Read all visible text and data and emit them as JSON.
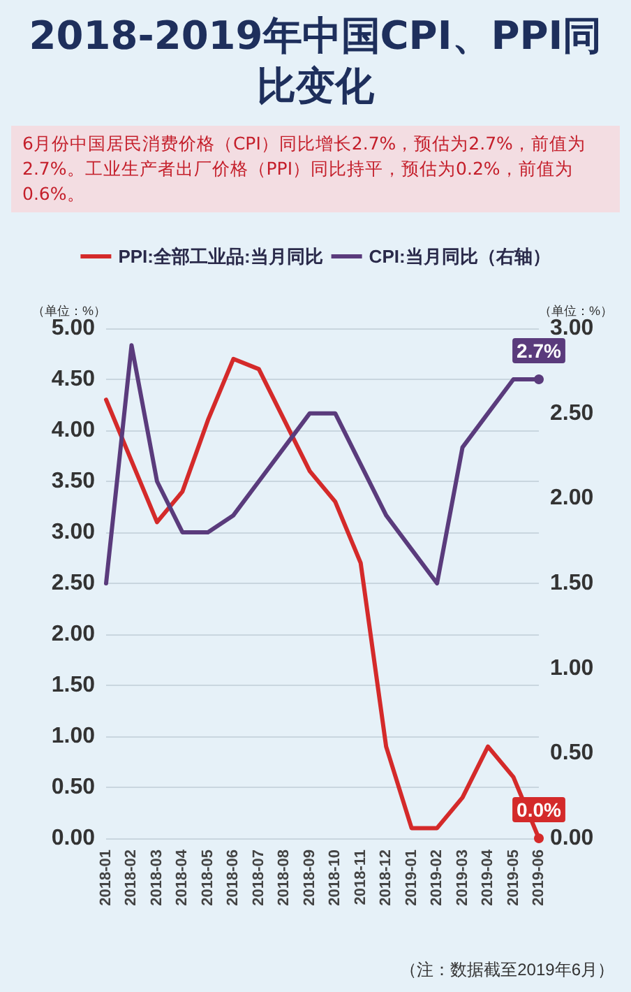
{
  "chart_data": {
    "type": "line",
    "title": "2018-2019年中国CPI、PPI同比变化",
    "subtitle": "6月份中国居民消费价格（CPI）同比增长2.7%，预估为2.7%，前值为2.7%。工业生产者出厂价格（PPI）同比持平，预估为0.2%，前值为0.6%。",
    "categories": [
      "2018-01",
      "2018-02",
      "2018-03",
      "2018-04",
      "2018-05",
      "2018-06",
      "2018-07",
      "2018-08",
      "2018-09",
      "2018-10",
      "2018-11",
      "2018-12",
      "2019-01",
      "2019-02",
      "2019-03",
      "2019-04",
      "2019-05",
      "2019-06"
    ],
    "series": [
      {
        "name": "PPI:全部工业品:当月同比",
        "color": "#d42a2a",
        "values": [
          4.3,
          3.7,
          3.1,
          3.4,
          4.1,
          4.7,
          4.6,
          4.1,
          3.6,
          3.3,
          2.7,
          0.9,
          0.1,
          0.1,
          0.4,
          0.9,
          0.6,
          0.0
        ],
        "value_labels": [
          null,
          null,
          null,
          null,
          null,
          null,
          null,
          null,
          null,
          null,
          null,
          null,
          null,
          null,
          null,
          null,
          null,
          "0.0%"
        ]
      },
      {
        "name": "CPI:当月同比（右轴）",
        "color": "#5a3b7c",
        "axis": "y2",
        "values": [
          1.5,
          2.9,
          2.1,
          1.8,
          1.8,
          1.9,
          2.1,
          2.3,
          2.5,
          2.5,
          2.2,
          1.9,
          1.7,
          1.5,
          2.3,
          2.5,
          2.7,
          2.7
        ],
        "value_labels": [
          null,
          null,
          null,
          null,
          null,
          null,
          null,
          null,
          null,
          null,
          null,
          null,
          null,
          null,
          null,
          null,
          null,
          "2.7%"
        ]
      }
    ],
    "ylabel": "（单位：%）",
    "y2label": "（单位：%）",
    "ylim": [
      0,
      5
    ],
    "yticks": [
      {
        "value": 0,
        "label": "0.00"
      },
      {
        "value": 0.5,
        "label": "0.50"
      },
      {
        "value": 1,
        "label": "1.00"
      },
      {
        "value": 1.5,
        "label": "1.50"
      },
      {
        "value": 2,
        "label": "2.00"
      },
      {
        "value": 2.5,
        "label": "2.50"
      },
      {
        "value": 3,
        "label": "3.00"
      },
      {
        "value": 3.5,
        "label": "3.50"
      },
      {
        "value": 4,
        "label": "4.00"
      },
      {
        "value": 4.5,
        "label": "4.50"
      },
      {
        "value": 5,
        "label": "5.00"
      }
    ],
    "y2lim": [
      0,
      3
    ],
    "y2ticks": [
      {
        "value": 0,
        "label": "0.00"
      },
      {
        "value": 0.5,
        "label": "0.50"
      },
      {
        "value": 1,
        "label": "1.00"
      },
      {
        "value": 1.5,
        "label": "1.50"
      },
      {
        "value": 2,
        "label": "2.00"
      },
      {
        "value": 2.5,
        "label": "2.50"
      },
      {
        "value": 3,
        "label": "3.00"
      }
    ],
    "grid": "y",
    "legend": "top",
    "marker": "none",
    "line_style": "solid",
    "annotations": [
      "（注：数据截至2019年6月）"
    ]
  }
}
